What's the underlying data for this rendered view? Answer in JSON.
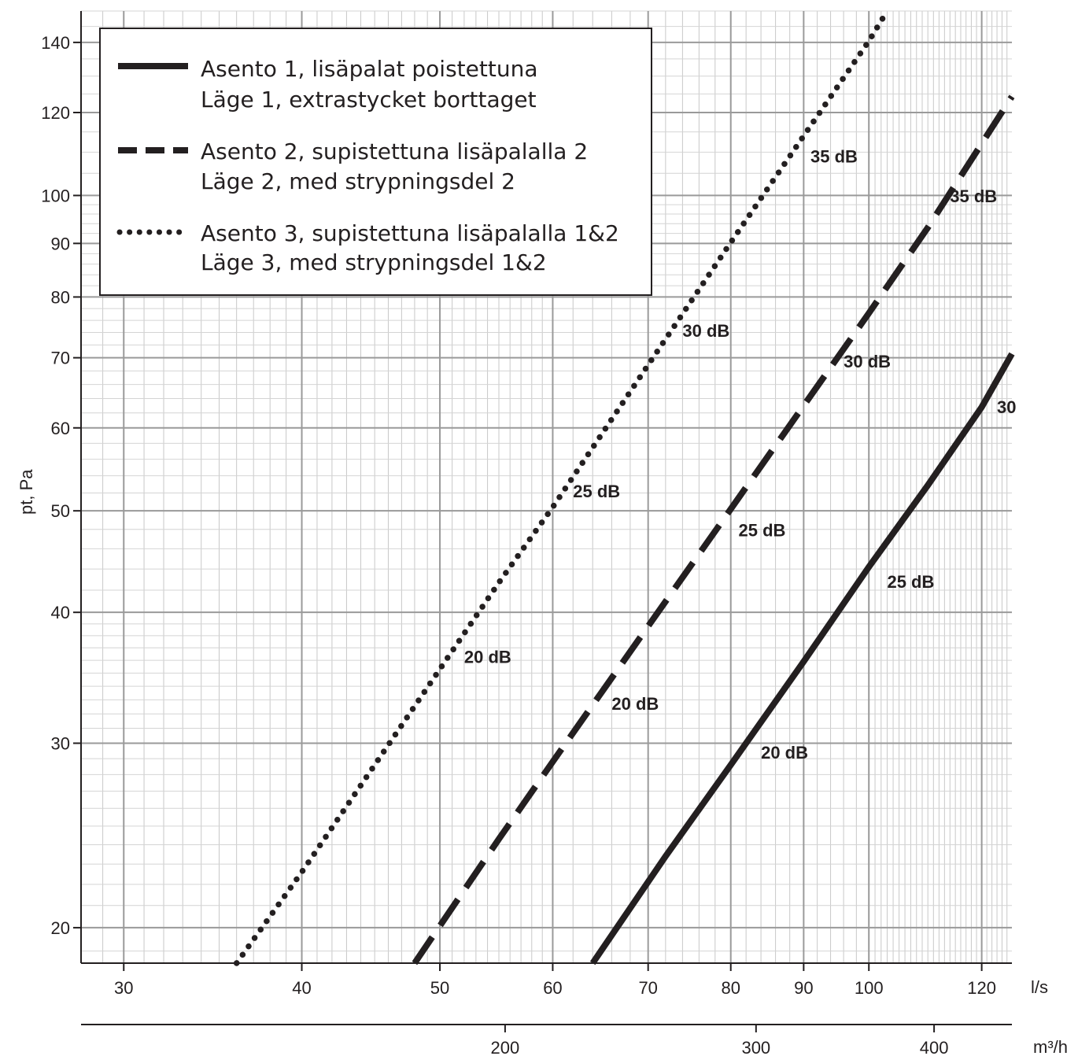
{
  "chart_data": {
    "type": "line",
    "xlabel": "l/s",
    "x2label": "m³/h",
    "ylabel": "pt, Pa",
    "xscale": "log",
    "yscale": "log",
    "xlim": [
      28,
      126
    ],
    "ylim": [
      18.5,
      150
    ],
    "grid": true,
    "legend_position": "top-left",
    "x_ticks": [
      30,
      40,
      50,
      60,
      70,
      80,
      90,
      100,
      120
    ],
    "x2_ticks": [
      200,
      300,
      400
    ],
    "y_ticks": [
      20,
      30,
      40,
      50,
      60,
      70,
      80,
      90,
      100,
      120,
      140
    ],
    "series": [
      {
        "name": "Asento 1, lisäpalat poistettuna",
        "name2": "Läge 1, extrastycket borttaget",
        "style": "solid",
        "x": [
          64,
          72,
          80,
          90,
          100,
          110,
          120,
          126
        ],
        "y": [
          18.5,
          23.4,
          28.6,
          35.9,
          44.2,
          52.9,
          62.8,
          70.6
        ],
        "labels": [
          {
            "text": "20 dB",
            "x": 84,
            "y": 29
          },
          {
            "text": "25 dB",
            "x": 103,
            "y": 42.2
          },
          {
            "text": "30",
            "x": 123,
            "y": 62
          }
        ]
      },
      {
        "name": "Asento 2, supistettuna lisäpalalla 2",
        "name2": "Läge 2, med strypningsdel 2",
        "style": "dashed",
        "x": [
          48,
          55,
          60,
          70,
          80,
          90,
          100,
          110,
          126
        ],
        "y": [
          18.5,
          24.3,
          28.8,
          38.8,
          50.2,
          63.0,
          77.2,
          93.2,
          124.3
        ],
        "labels": [
          {
            "text": "20 dB",
            "x": 66,
            "y": 32.3
          },
          {
            "text": "25 dB",
            "x": 81,
            "y": 47.3
          },
          {
            "text": "30 dB",
            "x": 96,
            "y": 68.5
          },
          {
            "text": "35 dB",
            "x": 114,
            "y": 98.5
          }
        ]
      },
      {
        "name": "Asento 3, supistettuna lisäpalalla 1&2",
        "name2": "Läge 3, med strypningsdel 1&2",
        "style": "dotted",
        "x": [
          36,
          40,
          45,
          50,
          55,
          60,
          70,
          80,
          90,
          100,
          103
        ],
        "y": [
          18.5,
          22.6,
          28.6,
          35.3,
          42.7,
          50.4,
          68.9,
          90.2,
          114.0,
          140.4,
          150.0
        ],
        "labels": [
          {
            "text": "20 dB",
            "x": 52,
            "y": 35.8
          },
          {
            "text": "25 dB",
            "x": 62,
            "y": 51.5
          },
          {
            "text": "30 dB",
            "x": 74,
            "y": 73.3
          },
          {
            "text": "35 dB",
            "x": 91,
            "y": 107.5
          }
        ]
      }
    ]
  }
}
